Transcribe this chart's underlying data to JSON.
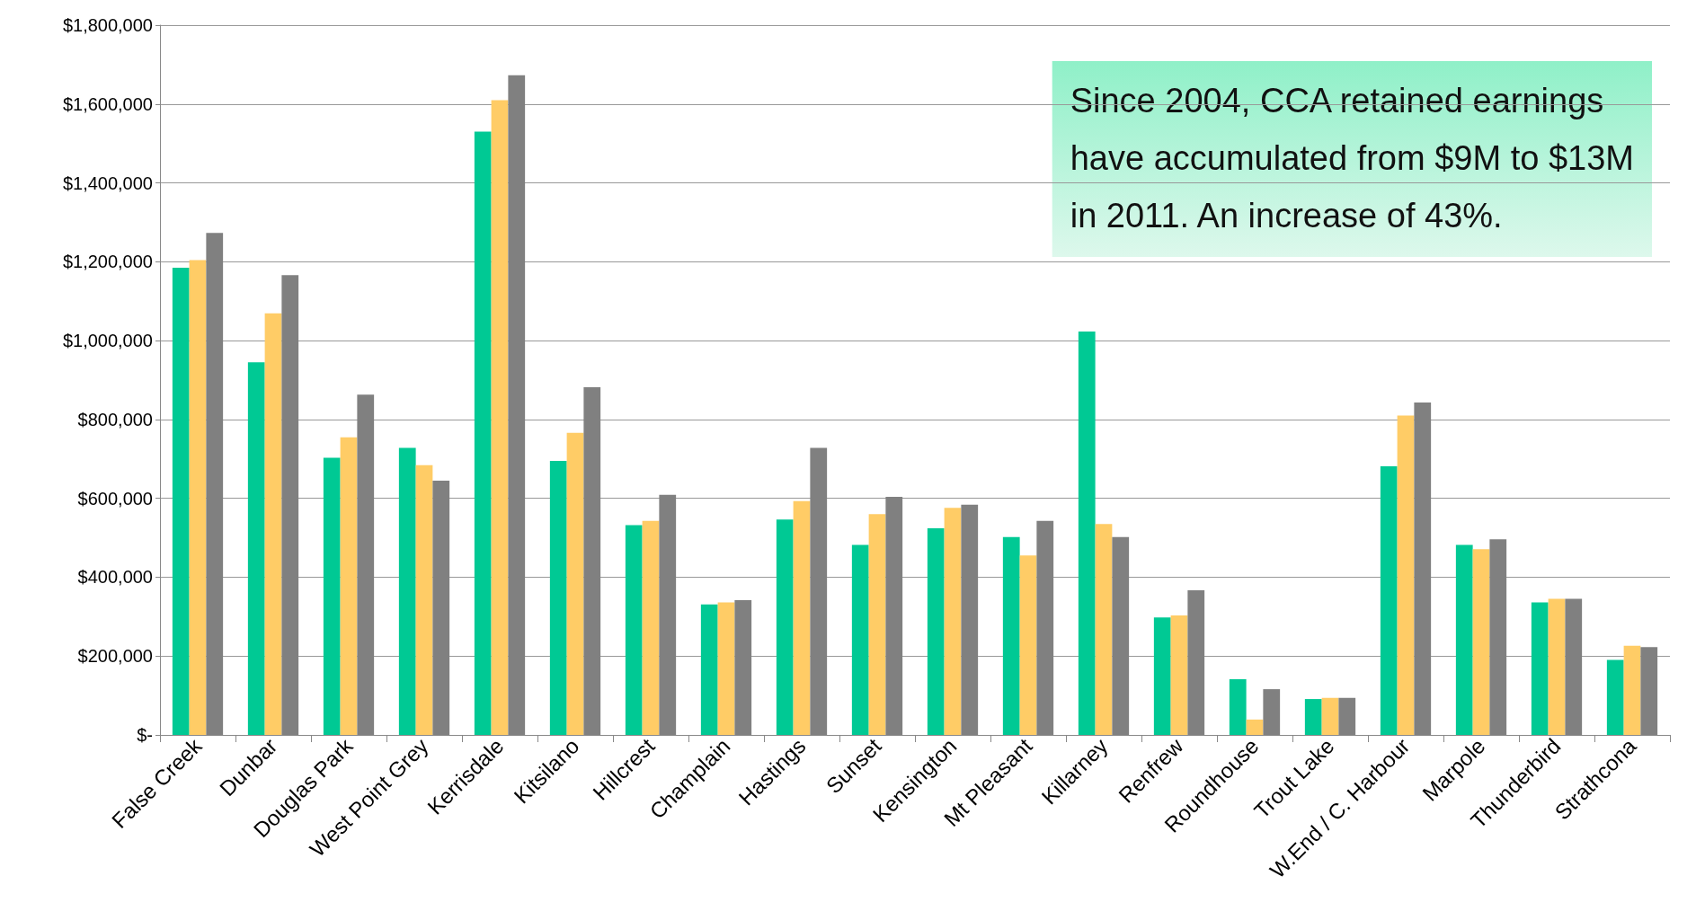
{
  "chart_data": {
    "type": "bar",
    "categories": [
      "False Creek",
      "Dunbar",
      "Douglas Park",
      "West Point Grey",
      "Kerrisdale",
      "Kitsilano",
      "Hillcrest",
      "Champlain",
      "Hastings",
      "Sunset",
      "Kensington",
      "Mt Pleasant",
      "Killarney",
      "Renfrew",
      "Roundhouse",
      "Trout Lake",
      "W.End / C. Harbour",
      "Marpole",
      "Thunderbird",
      "Strathcona"
    ],
    "series": [
      {
        "color": "#00c994",
        "values": [
          1185000,
          945000,
          703000,
          728000,
          1530000,
          695000,
          532000,
          331000,
          546000,
          482000,
          524000,
          502000,
          1023000,
          298000,
          141000,
          91000,
          681000,
          482000,
          336000,
          190000
        ]
      },
      {
        "color": "#ffcc66",
        "values": [
          1204000,
          1069000,
          755000,
          684000,
          1610000,
          766000,
          543000,
          336000,
          593000,
          560000,
          576000,
          455000,
          535000,
          303000,
          39000,
          94000,
          810000,
          471000,
          345000,
          226000
        ]
      },
      {
        "color": "#808080",
        "values": [
          1273000,
          1166000,
          863000,
          645000,
          1673000,
          882000,
          609000,
          342000,
          728000,
          604000,
          584000,
          543000,
          502000,
          367000,
          116000,
          94000,
          843000,
          496000,
          345000,
          223000
        ]
      }
    ],
    "ylim": [
      0,
      1800000
    ],
    "yticks": [
      {
        "value": 0,
        "label": "$-"
      },
      {
        "value": 200000,
        "label": "$200,000"
      },
      {
        "value": 400000,
        "label": "$400,000"
      },
      {
        "value": 600000,
        "label": "$600,000"
      },
      {
        "value": 800000,
        "label": "$800,000"
      },
      {
        "value": 1000000,
        "label": "$1,000,000"
      },
      {
        "value": 1200000,
        "label": "$1,200,000"
      },
      {
        "value": 1400000,
        "label": "$1,400,000"
      },
      {
        "value": 1600000,
        "label": "$1,600,000"
      },
      {
        "value": 1800000,
        "label": "$1,800,000"
      }
    ],
    "grid": "y",
    "annotations": [
      "Since 2004, CCA retained earnings\nhave accumulated from $9M to $13M\nin 2011. An increase of 43%."
    ]
  }
}
